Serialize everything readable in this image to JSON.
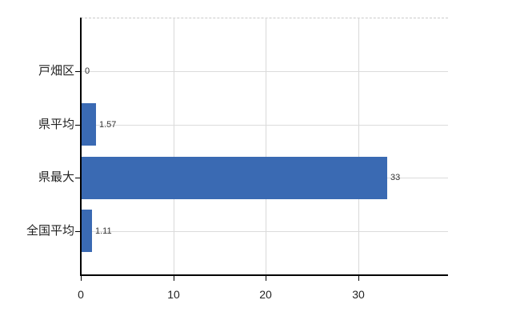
{
  "chart_data": {
    "type": "bar",
    "orientation": "horizontal",
    "title": "",
    "xlabel": "",
    "ylabel": "",
    "categories": [
      "戸畑区",
      "県平均",
      "県最大",
      "全国平均"
    ],
    "values": [
      0,
      1.57,
      33,
      1.11
    ],
    "data_labels": [
      "0",
      "1.57",
      "33",
      "1.11"
    ],
    "x_ticks": [
      0,
      10,
      20,
      30
    ],
    "x_tick_labels": [
      "0",
      "10",
      "20",
      "30"
    ],
    "xlim": [
      0,
      39.7
    ],
    "grid": true,
    "legend": false,
    "colors": {
      "bar": "#3a6ab3",
      "gridline": "#dcdcdc",
      "top_border": "#c9c9c9",
      "axis": "#000000",
      "text": "#222222",
      "value_text": "#333333",
      "background": "#ffffff"
    }
  }
}
